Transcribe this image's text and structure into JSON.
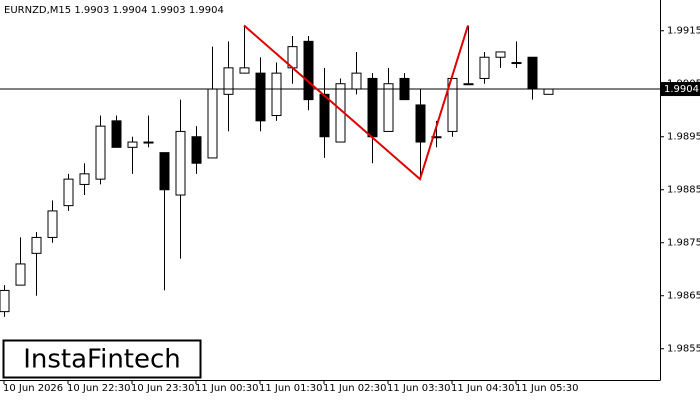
{
  "chart_data": {
    "type": "candlestick",
    "title": "EURNZD,M15  1.9903 1.9904 1.9903 1.9904",
    "categories": [
      "10 Jun 2026",
      null,
      null,
      null,
      "10 Jun 22:30",
      null,
      null,
      null,
      "10 Jun 23:30",
      null,
      null,
      null,
      "11 Jun 00:30",
      null,
      null,
      null,
      "11 Jun 01:30",
      null,
      null,
      null,
      "11 Jun 02:30",
      null,
      null,
      null,
      "11 Jun 03:30",
      null,
      null,
      null,
      "11 Jun 04:30",
      null,
      null,
      null,
      "11 Jun 05:30",
      null,
      null
    ],
    "open": [
      1.9862,
      1.9867,
      1.9873,
      1.9876,
      1.9882,
      1.9886,
      1.9887,
      1.9898,
      1.9893,
      1.9894,
      1.9892,
      1.9884,
      1.9895,
      1.9891,
      1.9903,
      1.9907,
      1.9907,
      1.9899,
      1.9908,
      1.9913,
      1.9903,
      1.9894,
      1.9904,
      1.9906,
      1.9896,
      1.9906,
      1.9901,
      1.9895,
      1.9896,
      1.9905,
      1.9906,
      1.991,
      1.9909,
      1.991,
      1.9903
    ],
    "high": [
      1.9867,
      1.9876,
      1.9877,
      1.9883,
      1.9888,
      1.989,
      1.9899,
      1.9899,
      1.9895,
      1.9899,
      1.9892,
      1.9902,
      1.9897,
      1.9912,
      1.9913,
      1.9916,
      1.991,
      1.9909,
      1.9914,
      1.9914,
      1.9908,
      1.9906,
      1.9911,
      1.9907,
      1.9908,
      1.9907,
      1.9904,
      1.9898,
      1.9906,
      1.9916,
      1.9911,
      1.9911,
      1.9913,
      1.991,
      1.9904
    ],
    "low": [
      1.9861,
      1.9867,
      1.9865,
      1.9875,
      1.9881,
      1.9884,
      1.9886,
      1.9893,
      1.9888,
      1.9893,
      1.9866,
      1.9872,
      1.9888,
      1.9891,
      1.9896,
      1.9907,
      1.9896,
      1.9898,
      1.9905,
      1.99,
      1.9891,
      1.9894,
      1.9903,
      1.989,
      1.9896,
      1.9902,
      1.9887,
      1.9893,
      1.9895,
      1.9905,
      1.9905,
      1.9908,
      1.9908,
      1.9902,
      1.9903
    ],
    "close": [
      1.9866,
      1.9871,
      1.9876,
      1.9881,
      1.9887,
      1.9888,
      1.9897,
      1.9893,
      1.9894,
      1.9894,
      1.9885,
      1.9896,
      1.989,
      1.9904,
      1.9908,
      1.9908,
      1.9898,
      1.9907,
      1.9912,
      1.9902,
      1.9895,
      1.9905,
      1.9907,
      1.9895,
      1.9905,
      1.9902,
      1.9894,
      1.9895,
      1.9906,
      1.9905,
      1.991,
      1.9911,
      1.9909,
      1.9904,
      1.9904
    ],
    "up_color": "#ffffff",
    "down_color": "#000000",
    "ylim": [
      1.98491,
      1.99208
    ],
    "yticks": [
      1.9855,
      1.9865,
      1.9875,
      1.9885,
      1.9895,
      1.9905,
      1.9915
    ],
    "price_line": 1.9904,
    "pattern": {
      "color": "#e00000",
      "x": [
        15,
        26,
        29
      ],
      "values": [
        1.9916,
        1.9887,
        1.9916
      ]
    },
    "watermark": "InstaFintech"
  }
}
